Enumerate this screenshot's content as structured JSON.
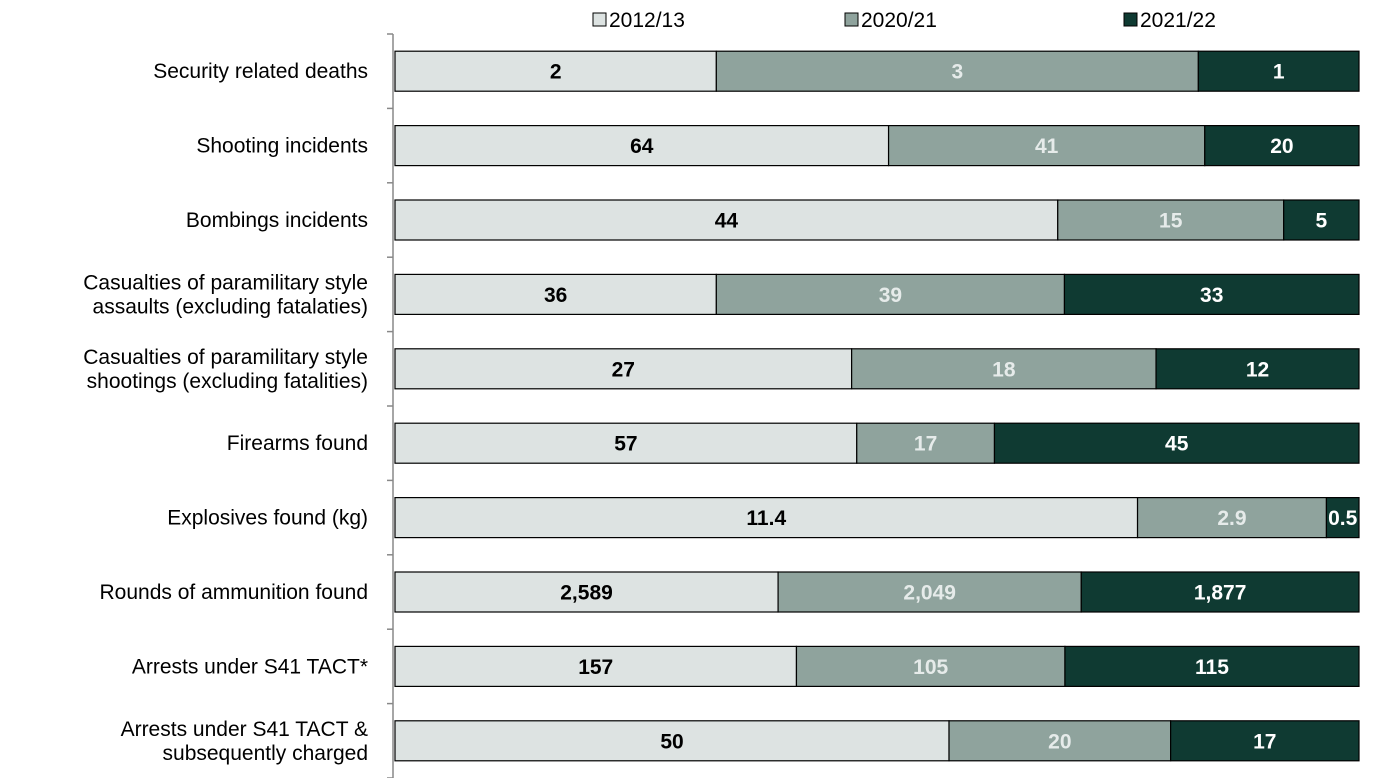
{
  "chart_data": {
    "type": "bar",
    "orientation": "horizontal",
    "stacking": "percent",
    "title": "",
    "xlabel": "",
    "ylabel": "",
    "grid": false,
    "legend_position": "top",
    "categories": [
      [
        "Security related deaths"
      ],
      [
        "Shooting incidents"
      ],
      [
        "Bombings incidents"
      ],
      [
        "Casualties of paramilitary style",
        "assaults (excluding fatalaties)"
      ],
      [
        "Casualties of paramilitary style",
        "shootings (excluding fatalities)"
      ],
      [
        "Firearms found"
      ],
      [
        "Explosives found (kg)"
      ],
      [
        "Rounds of ammunition found"
      ],
      [
        "Arrests under S41 TACT*"
      ],
      [
        "Arrests under S41 TACT &",
        "subsequently charged"
      ]
    ],
    "series": [
      {
        "name": "2012/13",
        "color": "#dde3e2",
        "label_color": "#000000",
        "values": [
          2,
          64,
          44,
          36,
          27,
          57,
          11.4,
          2589,
          157,
          50
        ],
        "labels": [
          "2",
          "64",
          "44",
          "36",
          "27",
          "57",
          "11.4",
          "2,589",
          "157",
          "50"
        ]
      },
      {
        "name": "2020/21",
        "color": "#8fa39d",
        "label_color": "#e6ebea",
        "values": [
          3,
          41,
          15,
          39,
          18,
          17,
          2.9,
          2049,
          105,
          20
        ],
        "labels": [
          "3",
          "41",
          "15",
          "39",
          "18",
          "17",
          "2.9",
          "2,049",
          "105",
          "20"
        ]
      },
      {
        "name": "2021/22",
        "color": "#0f3a32",
        "label_color": "#ffffff",
        "values": [
          1,
          20,
          5,
          33,
          12,
          45,
          0.5,
          1877,
          115,
          17
        ],
        "labels": [
          "1",
          "20",
          "5",
          "33",
          "12",
          "45",
          "0.5",
          "1,877",
          "115",
          "17"
        ]
      }
    ]
  }
}
